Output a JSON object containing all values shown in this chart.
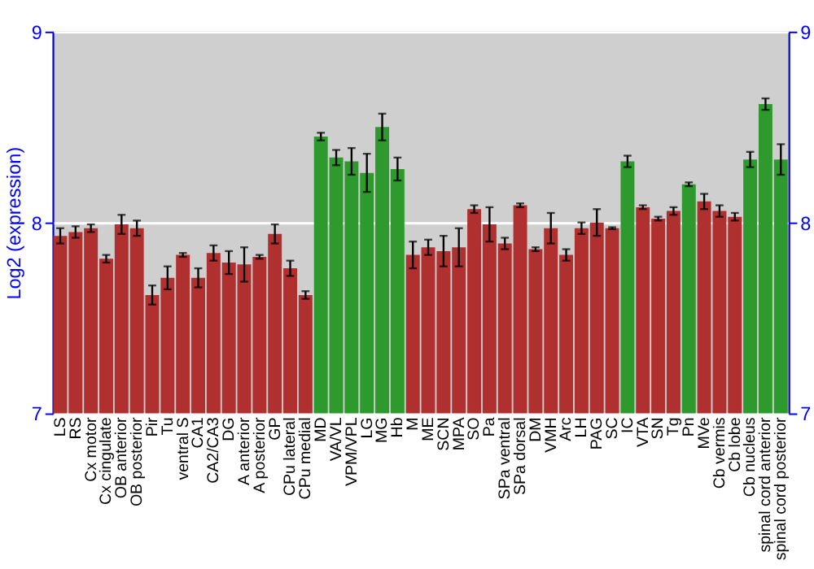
{
  "chart_data": {
    "type": "bar",
    "ylabel": "Log2 (expression)",
    "categories": [
      "LS",
      "RS",
      "Cx motor",
      "Cx cingulate",
      "OB anterior",
      "OB posterior",
      "Pir",
      "Tu",
      "ventral S",
      "CA1",
      "CA2/CA3",
      "DG",
      "A anterior",
      "A posterior",
      "GP",
      "CPu lateral",
      "CPu medial",
      "MD",
      "VA/VL",
      "VPM/VPL",
      "LG",
      "MG",
      "Hb",
      "M",
      "ME",
      "SCN",
      "MPA",
      "SO",
      "Pa",
      "SPa ventral",
      "SPa dorsal",
      "DM",
      "VMH",
      "Arc",
      "LH",
      "PAG",
      "SC",
      "IC",
      "VTA",
      "SN",
      "Tg",
      "Pn",
      "MVe",
      "Cb vermis",
      "Cb lobe",
      "Cb nucleus",
      "spinal cord anterior",
      "spinal cord posterior"
    ],
    "values": [
      7.93,
      7.95,
      7.97,
      7.81,
      7.99,
      7.97,
      7.62,
      7.71,
      7.83,
      7.71,
      7.84,
      7.79,
      7.78,
      7.82,
      7.94,
      7.76,
      7.62,
      8.45,
      8.34,
      8.32,
      8.26,
      8.5,
      8.28,
      7.83,
      7.87,
      7.85,
      7.87,
      8.07,
      7.99,
      7.89,
      8.09,
      7.86,
      7.97,
      7.83,
      7.97,
      8.0,
      7.97,
      8.32,
      8.08,
      8.02,
      8.06,
      8.2,
      8.11,
      8.06,
      8.03,
      8.33,
      8.62,
      8.33
    ],
    "errors": [
      0.04,
      0.03,
      0.02,
      0.02,
      0.05,
      0.04,
      0.05,
      0.06,
      0.01,
      0.05,
      0.04,
      0.06,
      0.09,
      0.01,
      0.05,
      0.04,
      0.02,
      0.02,
      0.04,
      0.07,
      0.1,
      0.07,
      0.06,
      0.07,
      0.04,
      0.08,
      0.1,
      0.02,
      0.09,
      0.03,
      0.01,
      0.01,
      0.08,
      0.03,
      0.03,
      0.07,
      0.005,
      0.03,
      0.01,
      0.01,
      0.02,
      0.01,
      0.04,
      0.03,
      0.02,
      0.04,
      0.03,
      0.08
    ],
    "colors": [
      "#b03030",
      "#b03030",
      "#b03030",
      "#b03030",
      "#b03030",
      "#b03030",
      "#b03030",
      "#b03030",
      "#b03030",
      "#b03030",
      "#b03030",
      "#b03030",
      "#b03030",
      "#b03030",
      "#b03030",
      "#b03030",
      "#b03030",
      "#2e9a2e",
      "#2e9a2e",
      "#2e9a2e",
      "#2e9a2e",
      "#2e9a2e",
      "#2e9a2e",
      "#b03030",
      "#b03030",
      "#b03030",
      "#b03030",
      "#b03030",
      "#b03030",
      "#b03030",
      "#b03030",
      "#b03030",
      "#b03030",
      "#b03030",
      "#b03030",
      "#b03030",
      "#b03030",
      "#2e9a2e",
      "#b03030",
      "#b03030",
      "#b03030",
      "#2e9a2e",
      "#b03030",
      "#b03030",
      "#b03030",
      "#2e9a2e",
      "#2e9a2e",
      "#2e9a2e"
    ],
    "ylim": [
      7,
      9
    ],
    "yticks": [
      7,
      8,
      9
    ],
    "y2lim": [
      7,
      9
    ],
    "y2ticks": [
      7,
      8,
      9
    ],
    "grid": "y"
  }
}
